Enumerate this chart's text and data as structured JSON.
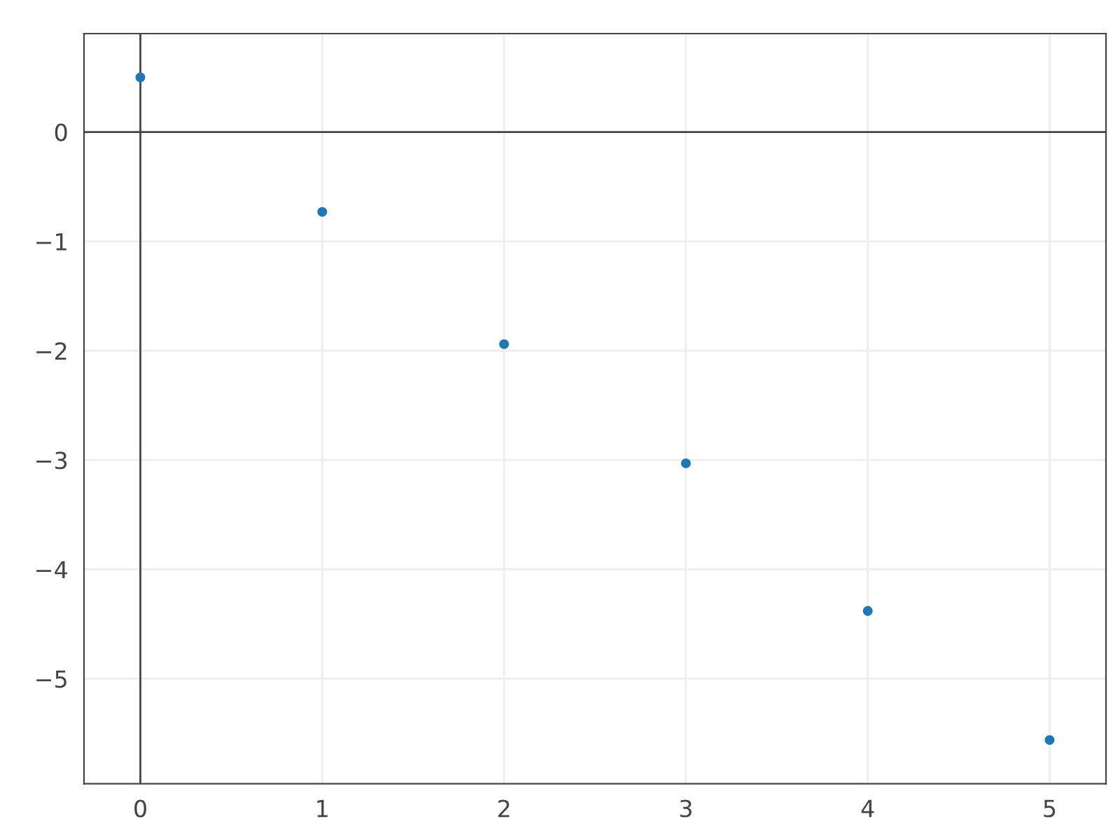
{
  "chart_data": {
    "type": "scatter",
    "x": [
      0,
      1,
      2,
      3,
      4,
      5
    ],
    "series": [
      {
        "color": "#1f77b4",
        "values": [
          0.5,
          -0.73,
          -1.94,
          -3.03,
          -4.38,
          -5.56
        ]
      }
    ],
    "xlim": [
      -0.31,
      5.31
    ],
    "ylim": [
      -5.96,
      0.9
    ],
    "xticks": [
      0,
      1,
      2,
      3,
      4,
      5
    ],
    "yticks": [
      0,
      {
        "value": -1,
        "label": "−1"
      },
      {
        "value": -2,
        "label": "−2"
      },
      {
        "value": -3,
        "label": "−3"
      },
      {
        "value": -4,
        "label": "−4"
      },
      {
        "value": -5,
        "label": "−5"
      }
    ],
    "grid": true,
    "marker": "circle",
    "legend": false
  }
}
